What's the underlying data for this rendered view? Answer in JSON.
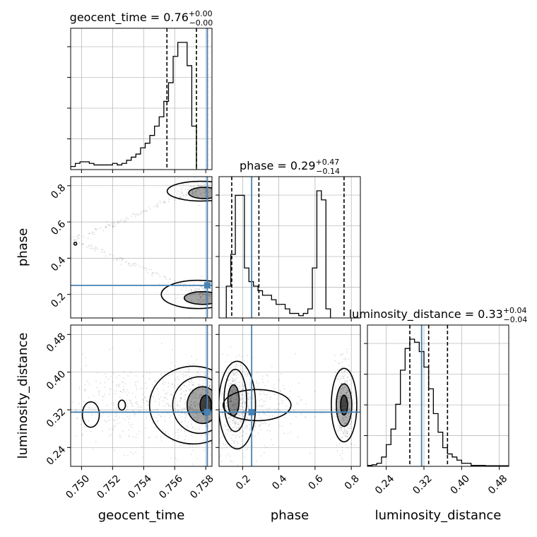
{
  "chart_data": {
    "type": "corner",
    "parameters": [
      "geocent_time",
      "phase",
      "luminosity_distance"
    ],
    "axis_labels": {
      "geocent_time": "geocent_time",
      "phase": "phase",
      "luminosity_distance": "luminosity_distance"
    },
    "ranges": {
      "geocent_time": [
        0.7493,
        0.7584
      ],
      "phase": [
        0.07,
        0.85
      ],
      "luminosity_distance": [
        0.2,
        0.5
      ]
    },
    "ticks": {
      "geocent_time": {
        "values": [
          0.75,
          0.752,
          0.754,
          0.756,
          0.758
        ],
        "labels": [
          "0.750",
          "0.752",
          "0.754",
          "0.756",
          "0.758"
        ]
      },
      "phase": {
        "values": [
          0.2,
          0.4,
          0.6,
          0.8
        ],
        "labels": [
          "0.2",
          "0.4",
          "0.6",
          "0.8"
        ]
      },
      "luminosity_distance": {
        "values": [
          0.24,
          0.32,
          0.4,
          0.48
        ],
        "labels": [
          "0.24",
          "0.32",
          "0.40",
          "0.48"
        ]
      }
    },
    "truths": {
      "geocent_time": 0.7581,
      "phase": 0.25,
      "luminosity_distance": 0.315
    },
    "truth_color": "#4682b4",
    "titles": [
      {
        "param": "geocent_time",
        "prefix": "geocent_time = 0.76",
        "upper": "+0.00",
        "lower": "−0.00"
      },
      {
        "param": "phase",
        "prefix": "phase = 0.29",
        "upper": "+0.47",
        "lower": "−0.14"
      },
      {
        "param": "luminosity_distance",
        "prefix": "luminosity_distance = 0.33",
        "upper": "+0.04",
        "lower": "−0.04"
      }
    ],
    "quantiles": {
      "geocent_time": [
        0.7555,
        0.7574,
        0.7581
      ],
      "phase": [
        0.14,
        0.29,
        0.76
      ],
      "luminosity_distance": [
        0.29,
        0.33,
        0.37
      ]
    },
    "histograms": {
      "geocent_time": {
        "bin_edges_start": 0.7493,
        "bin_width": 0.0003,
        "counts": [
          2,
          4,
          5,
          5,
          4,
          3,
          3,
          3,
          3,
          4,
          3,
          4,
          6,
          8,
          10,
          14,
          17,
          22,
          28,
          34,
          44,
          56,
          73,
          82,
          82,
          67,
          28
        ]
      },
      "phase": {
        "bin_edges_start": 0.11,
        "bin_width": 0.025,
        "counts": [
          7,
          14,
          27,
          27,
          11,
          8,
          7,
          6,
          5,
          5,
          4,
          3,
          3,
          2,
          1,
          1,
          0.5,
          1,
          2,
          11,
          28,
          26,
          2
        ]
      },
      "luminosity_distance": {
        "bin_edges_start": 0.2,
        "bin_width": 0.01,
        "counts": [
          0.3,
          0.5,
          1,
          3,
          7,
          12,
          20,
          31,
          38,
          41,
          40,
          37,
          32,
          25,
          17,
          11,
          6,
          4,
          3,
          2,
          1,
          1,
          0.3,
          0.3,
          0.3,
          0.2,
          0.2,
          0.2,
          0.2,
          0.2
        ]
      }
    },
    "grid": true,
    "grid_color": "#b0b0b0"
  }
}
